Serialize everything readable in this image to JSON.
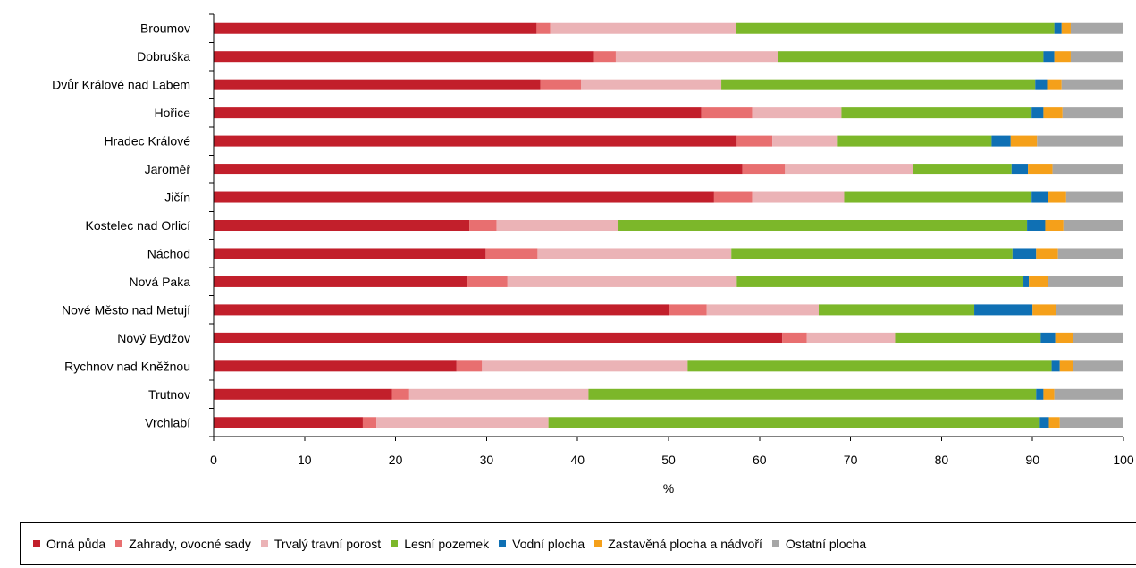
{
  "chart_data": {
    "type": "bar",
    "orientation": "horizontal",
    "stacked": true,
    "categories": [
      "Broumov",
      "Dobruška",
      "Dvůr Králové nad Labem",
      "Hořice",
      "Hradec Králové",
      "Jaroměř",
      "Jičín",
      "Kostelec nad Orlicí",
      "Náchod",
      "Nová Paka",
      "Nové Město nad Metují",
      "Nový Bydžov",
      "Rychnov nad Kněžnou",
      "Trutnov",
      "Vrchlabí"
    ],
    "series": [
      {
        "name": "Orná půda",
        "color": "#c21f2b",
        "values": [
          35.5,
          41.8,
          35.9,
          53.6,
          57.5,
          58.1,
          55.0,
          28.1,
          29.9,
          27.9,
          50.1,
          62.5,
          26.7,
          19.6,
          16.4
        ]
      },
      {
        "name": "Zahrady, ovocné sady",
        "color": "#e86f70",
        "values": [
          1.5,
          2.4,
          4.5,
          5.6,
          3.9,
          4.7,
          4.2,
          3.0,
          5.7,
          4.4,
          4.1,
          2.7,
          2.8,
          1.9,
          1.5
        ]
      },
      {
        "name": "Trvalý travní porost",
        "color": "#ebb3b6",
        "values": [
          20.4,
          17.8,
          15.4,
          9.8,
          7.2,
          14.1,
          10.1,
          13.4,
          21.3,
          25.2,
          12.3,
          9.7,
          22.6,
          19.7,
          18.9
        ]
      },
      {
        "name": "Lesní pozemek",
        "color": "#7cb72a",
        "values": [
          35.0,
          29.2,
          34.5,
          20.9,
          16.9,
          10.8,
          20.6,
          44.9,
          30.9,
          31.5,
          17.1,
          16.0,
          40.0,
          49.2,
          54.0
        ]
      },
      {
        "name": "Vodní plocha",
        "color": "#0f70b4",
        "values": [
          0.8,
          1.2,
          1.3,
          1.3,
          2.1,
          1.8,
          1.8,
          2.0,
          2.6,
          0.6,
          6.4,
          1.6,
          0.9,
          0.8,
          1.0
        ]
      },
      {
        "name": "Zastavěná plocha a nádvoří",
        "color": "#f5a01a",
        "values": [
          1.0,
          1.8,
          1.6,
          2.1,
          2.9,
          2.7,
          2.0,
          2.0,
          2.4,
          2.1,
          2.6,
          2.0,
          1.5,
          1.2,
          1.2
        ]
      },
      {
        "name": "Ostatní plocha",
        "color": "#a6a6a6",
        "values": [
          5.8,
          5.8,
          6.8,
          6.7,
          9.5,
          7.8,
          6.3,
          6.6,
          7.2,
          8.3,
          7.4,
          5.5,
          5.5,
          7.6,
          7.0
        ]
      }
    ],
    "xlim": [
      0,
      100
    ],
    "xticks": [
      0,
      10,
      20,
      30,
      40,
      50,
      60,
      70,
      80,
      90,
      100
    ],
    "xlabel": "%",
    "legend_position": "bottom",
    "grid": false
  }
}
